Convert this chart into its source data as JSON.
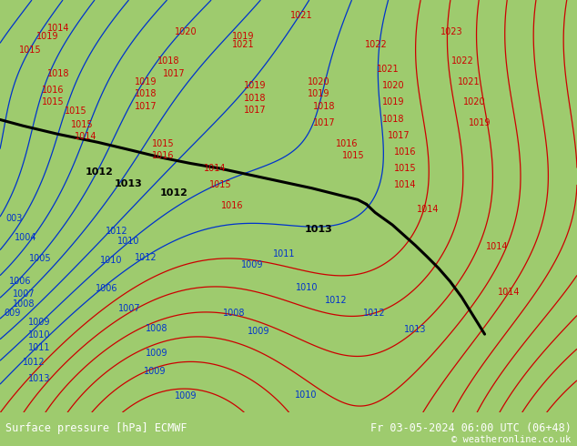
{
  "title_left": "Surface pressure [hPa] ECMWF",
  "title_right": "Fr 03-05-2024 06:00 UTC (06+48)",
  "copyright": "© weatheronline.co.uk",
  "bg_color": "#9ecb6e",
  "text_color_black": "#000000",
  "text_color_blue": "#0033cc",
  "text_color_red": "#cc0000",
  "bottom_bar_color": "#000000",
  "bottom_text_color": "#ffffff",
  "figsize": [
    6.34,
    4.9
  ],
  "dpi": 100
}
